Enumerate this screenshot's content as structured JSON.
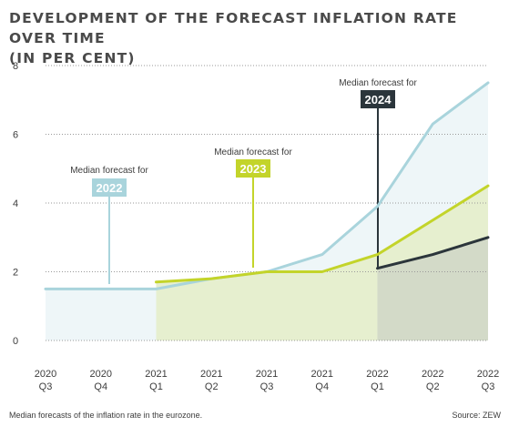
{
  "title_lines": [
    "DEVELOPMENT OF THE FORECAST INFLATION RATE OVER TIME",
    "(IN PER CENT)"
  ],
  "footer": {
    "note": "Median forecasts of the inflation rate in the eurozone.",
    "source": "Source: ZEW"
  },
  "colors": {
    "s2022": "#a9d4dc",
    "s2023": "#c3d42a",
    "s2024": "#2b353b",
    "fill2022": "#eef6f8",
    "fill2023": "#e6efcf",
    "fill2024": "#d3dac8"
  },
  "chart_data": {
    "type": "line",
    "yticks": [
      0,
      2,
      4,
      6,
      8
    ],
    "ylim": [
      0,
      8
    ],
    "grid": true,
    "categories": [
      [
        "2020",
        "Q3"
      ],
      [
        "2020",
        "Q4"
      ],
      [
        "2021",
        "Q1"
      ],
      [
        "2021",
        "Q2"
      ],
      [
        "2021",
        "Q3"
      ],
      [
        "2021",
        "Q4"
      ],
      [
        "2022",
        "Q1"
      ],
      [
        "2022",
        "Q2"
      ],
      [
        "2022",
        "Q3"
      ]
    ],
    "series": [
      {
        "key": "s2022",
        "values": [
          1.5,
          1.5,
          1.5,
          1.8,
          2.0,
          2.5,
          3.9,
          6.3,
          7.5
        ]
      },
      {
        "key": "s2023",
        "values": [
          null,
          null,
          1.7,
          1.8,
          2.0,
          2.0,
          2.5,
          3.5,
          4.5
        ]
      },
      {
        "key": "s2024",
        "values": [
          null,
          null,
          null,
          null,
          null,
          null,
          2.1,
          2.5,
          3.0
        ]
      }
    ],
    "annotations": [
      {
        "series": "s2022",
        "text": "Median forecast for",
        "year": "2022"
      },
      {
        "series": "s2023",
        "text": "Median forecast for",
        "year": "2023"
      },
      {
        "series": "s2024",
        "text": "Median forecast for",
        "year": "2024"
      }
    ]
  }
}
